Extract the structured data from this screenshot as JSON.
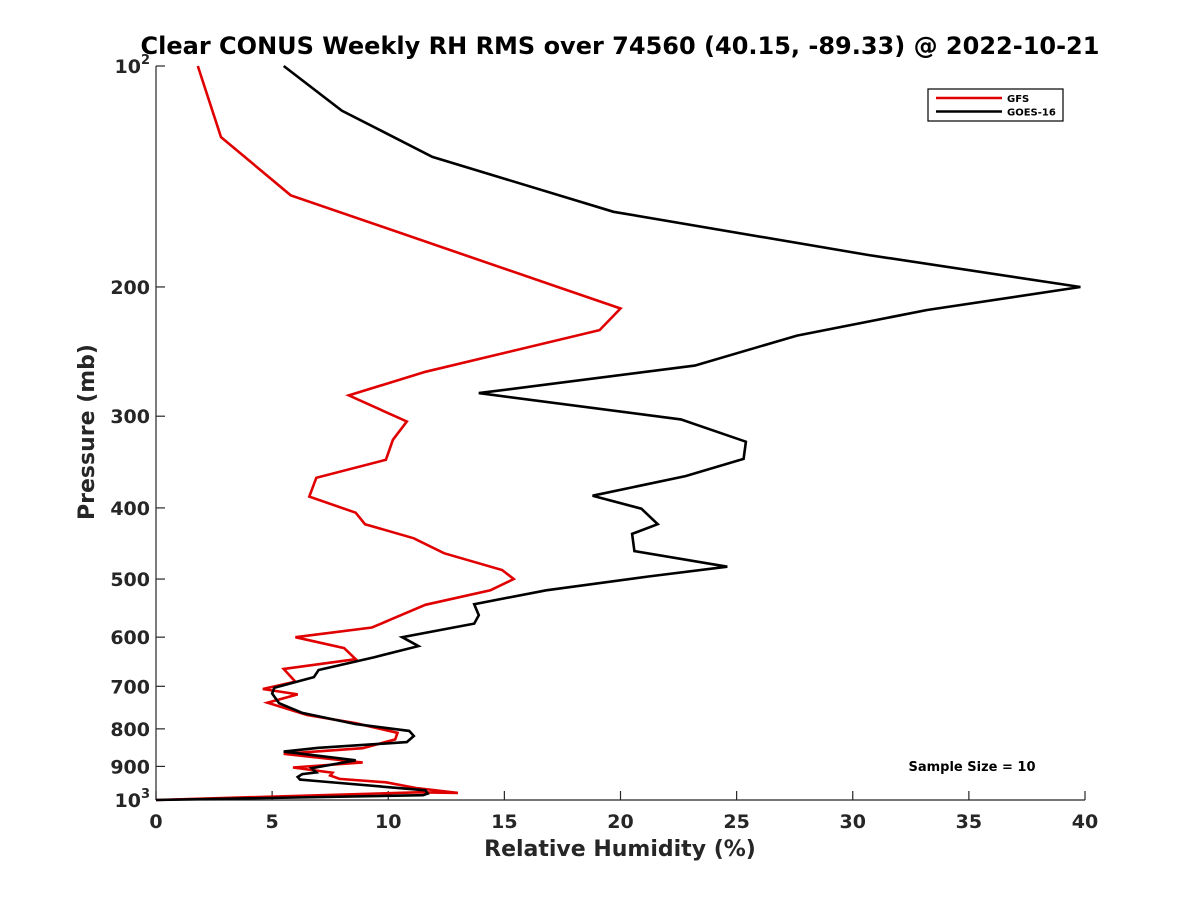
{
  "chart_data": {
    "type": "line",
    "title": "Clear CONUS Weekly RH RMS over 74560 (40.15, -89.33) @ 2022-10-21",
    "xlabel": "Relative Humidity (%)",
    "ylabel": "Pressure (mb)",
    "xlim": [
      0,
      40
    ],
    "ylim": [
      100,
      1000
    ],
    "y_scale": "log",
    "y_reversed": true,
    "grid": false,
    "legend_position": "top-right",
    "x_ticks": [
      "0",
      "5",
      "10",
      "15",
      "20",
      "25",
      "30",
      "35",
      "40"
    ],
    "y_ticks": [
      {
        "value": 100,
        "label": "10",
        "sup": "2"
      },
      {
        "value": 200,
        "label": "200",
        "sup": ""
      },
      {
        "value": 300,
        "label": "300",
        "sup": ""
      },
      {
        "value": 400,
        "label": "400",
        "sup": ""
      },
      {
        "value": 500,
        "label": "500",
        "sup": ""
      },
      {
        "value": 600,
        "label": "600",
        "sup": ""
      },
      {
        "value": 700,
        "label": "700",
        "sup": ""
      },
      {
        "value": 800,
        "label": "800",
        "sup": ""
      },
      {
        "value": 900,
        "label": "900",
        "sup": ""
      },
      {
        "value": 1000,
        "label": "10",
        "sup": "3"
      }
    ],
    "annotation": "Sample Size = 10",
    "series": [
      {
        "name": "GFS",
        "color": "#e00000",
        "points": [
          [
            1.8,
            100
          ],
          [
            2.8,
            125
          ],
          [
            5.8,
            150
          ],
          [
            17.3,
            200
          ],
          [
            20.0,
            214
          ],
          [
            19.1,
            229
          ],
          [
            11.6,
            261
          ],
          [
            8.3,
            281
          ],
          [
            10.8,
            305
          ],
          [
            10.2,
            323
          ],
          [
            9.9,
            344
          ],
          [
            6.9,
            364
          ],
          [
            6.6,
            386
          ],
          [
            8.6,
            406
          ],
          [
            9.0,
            421
          ],
          [
            11.1,
            440
          ],
          [
            12.4,
            461
          ],
          [
            14.9,
            486
          ],
          [
            15.4,
            500
          ],
          [
            14.4,
            518
          ],
          [
            11.6,
            542
          ],
          [
            10.2,
            566
          ],
          [
            9.3,
            582
          ],
          [
            6.0,
            600
          ],
          [
            8.1,
            621
          ],
          [
            8.6,
            643
          ],
          [
            5.5,
            663
          ],
          [
            6.0,
            690
          ],
          [
            4.6,
            706
          ],
          [
            6.1,
            718
          ],
          [
            4.8,
            737
          ],
          [
            6.5,
            766
          ],
          [
            8.6,
            786
          ],
          [
            10.4,
            810
          ],
          [
            10.3,
            827
          ],
          [
            8.9,
            850
          ],
          [
            5.5,
            865
          ],
          [
            8.9,
            889
          ],
          [
            5.9,
            903
          ],
          [
            7.6,
            918
          ],
          [
            7.5,
            926
          ],
          [
            7.9,
            936
          ],
          [
            9.9,
            946
          ],
          [
            11.2,
            963
          ],
          [
            13.0,
            978
          ],
          [
            11.3,
            976
          ],
          [
            0.0,
            1000
          ]
        ]
      },
      {
        "name": "GOES-16",
        "color": "#000000",
        "points": [
          [
            5.5,
            100
          ],
          [
            8.0,
            115
          ],
          [
            11.9,
            133
          ],
          [
            19.7,
            158
          ],
          [
            30.7,
            181
          ],
          [
            39.8,
            200
          ],
          [
            33.2,
            215
          ],
          [
            27.6,
            233
          ],
          [
            23.2,
            256
          ],
          [
            13.9,
            279
          ],
          [
            22.6,
            303
          ],
          [
            25.4,
            325
          ],
          [
            25.3,
            343
          ],
          [
            22.8,
            362
          ],
          [
            18.8,
            385
          ],
          [
            20.9,
            401
          ],
          [
            21.6,
            421
          ],
          [
            20.5,
            434
          ],
          [
            20.6,
            458
          ],
          [
            24.6,
            481
          ],
          [
            21.2,
            496
          ],
          [
            16.8,
            518
          ],
          [
            13.7,
            541
          ],
          [
            13.9,
            560
          ],
          [
            13.7,
            575
          ],
          [
            10.6,
            600
          ],
          [
            11.3,
            617
          ],
          [
            9.4,
            639
          ],
          [
            7.0,
            665
          ],
          [
            6.8,
            680
          ],
          [
            5.1,
            703
          ],
          [
            5.0,
            716
          ],
          [
            5.3,
            738
          ],
          [
            6.3,
            761
          ],
          [
            8.6,
            788
          ],
          [
            10.9,
            805
          ],
          [
            11.1,
            818
          ],
          [
            10.8,
            834
          ],
          [
            7.0,
            849
          ],
          [
            5.5,
            859
          ],
          [
            8.6,
            883
          ],
          [
            6.7,
            905
          ],
          [
            6.9,
            917
          ],
          [
            6.3,
            922
          ],
          [
            6.1,
            930
          ],
          [
            6.2,
            938
          ],
          [
            6.9,
            942
          ],
          [
            11.6,
            970
          ],
          [
            11.7,
            980
          ],
          [
            11.5,
            985
          ],
          [
            0.0,
            1000
          ]
        ]
      }
    ]
  }
}
